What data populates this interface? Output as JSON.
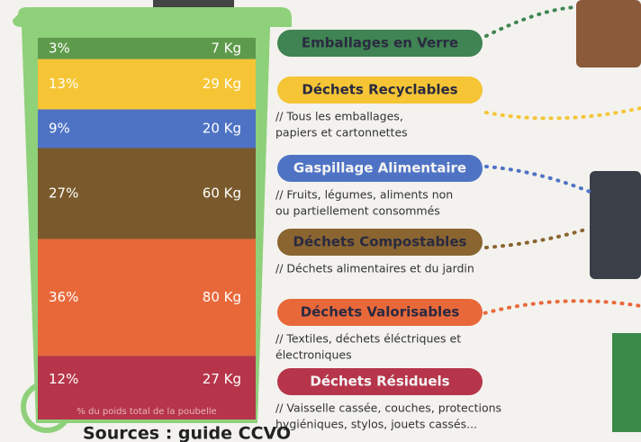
{
  "bin": {
    "segments": [
      {
        "percent": "3%",
        "weight": "7 Kg",
        "color": "#5e9a4b"
      },
      {
        "percent": "13%",
        "weight": "29 Kg",
        "color": "#f5c535"
      },
      {
        "percent": "9%",
        "weight": "20 Kg",
        "color": "#4f73c4"
      },
      {
        "percent": "27%",
        "weight": "60 Kg",
        "color": "#7a5a2c"
      },
      {
        "percent": "36%",
        "weight": "80 Kg",
        "color": "#e8683a"
      },
      {
        "percent": "12%",
        "weight": "27 Kg",
        "color": "#b6354a"
      }
    ],
    "footnote": "% du poids total de la poubelle"
  },
  "categories": [
    {
      "label": "Emballages en Verre",
      "color": "#3f8452",
      "description": []
    },
    {
      "label": "Déchets Recyclables",
      "color": "#f5c535",
      "description": [
        "// Tous les emballages,",
        "papiers et cartonnettes"
      ]
    },
    {
      "label": "Gaspillage Alimentaire",
      "color": "#4f73c4",
      "description": [
        "// Fruits, légumes, aliments non",
        "ou partiellement consommés"
      ]
    },
    {
      "label": "Déchets Compostables",
      "color": "#8a6530",
      "description": [
        "// Déchets alimentaires et du jardin"
      ]
    },
    {
      "label": "Déchets Valorisables",
      "color": "#e8683a",
      "description": [
        "// Textiles, déchets éléctriques et",
        "électroniques"
      ]
    },
    {
      "label": "Déchets Résiduels",
      "color": "#b6354a",
      "description": [
        "// Vaisselle cassée, couches, protections",
        "hygiéniques, stylos, jouets cassés..."
      ]
    }
  ],
  "source": "Sources : guide CCVO"
}
